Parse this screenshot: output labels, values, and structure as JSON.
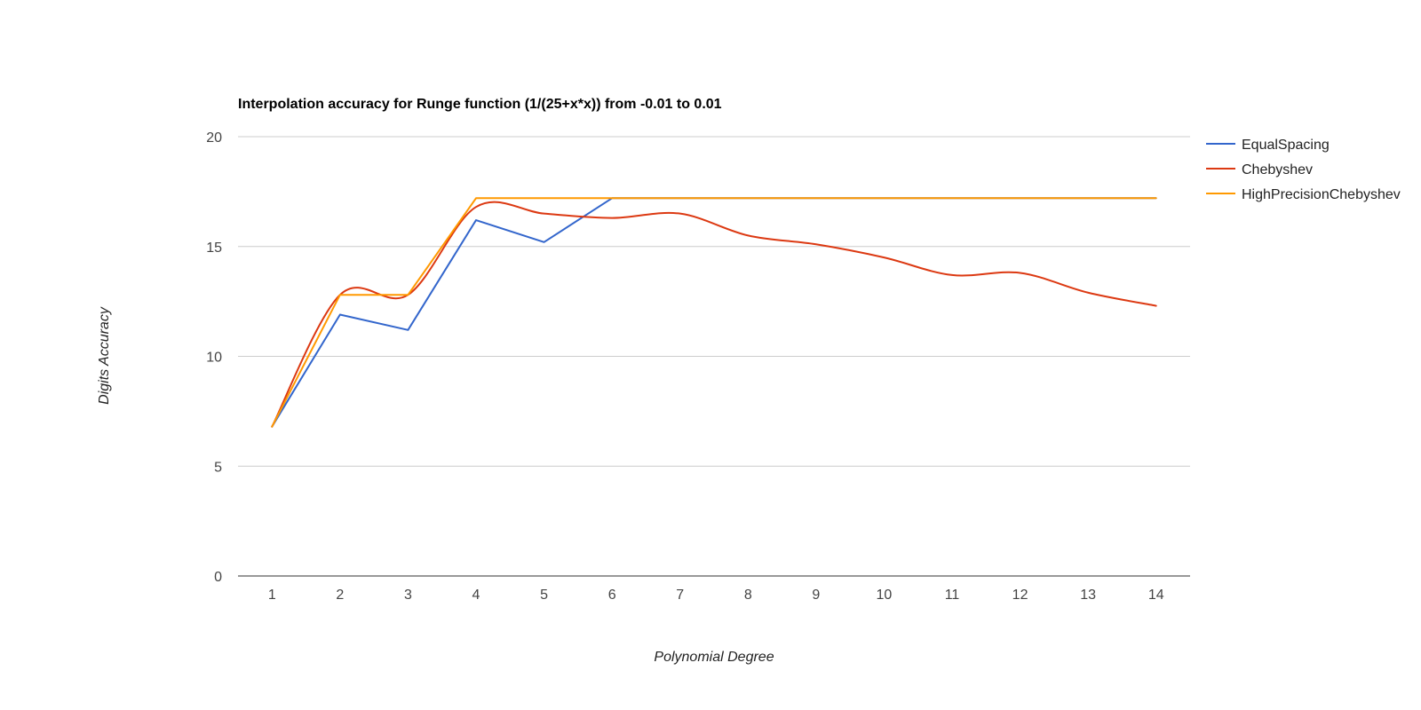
{
  "chart_data": {
    "type": "line",
    "title": "Interpolation accuracy for Runge function (1/(25+x*x)) from -0.01 to 0.01",
    "xlabel": "Polynomial Degree",
    "ylabel": "Digits Accuracy",
    "categories": [
      "1",
      "2",
      "3",
      "4",
      "5",
      "6",
      "7",
      "8",
      "9",
      "10",
      "11",
      "12",
      "13",
      "14"
    ],
    "ylim": [
      0,
      20
    ],
    "yticks": [
      0,
      5,
      10,
      15,
      20
    ],
    "grid": true,
    "legend_position": "right",
    "series": [
      {
        "name": "EqualSpacing",
        "color": "#3366cc",
        "smooth": false,
        "values": [
          6.8,
          11.9,
          11.2,
          16.2,
          15.2,
          17.2,
          17.2,
          17.2,
          17.2,
          17.2,
          17.2,
          17.2,
          17.2,
          17.2
        ]
      },
      {
        "name": "Chebyshev",
        "color": "#dc3912",
        "smooth": true,
        "values": [
          6.8,
          12.8,
          12.8,
          16.8,
          16.5,
          16.3,
          16.5,
          15.5,
          15.1,
          14.5,
          13.7,
          13.8,
          12.9,
          12.3
        ]
      },
      {
        "name": "HighPrecisionChebyshev",
        "color": "#ff9900",
        "smooth": false,
        "values": [
          6.8,
          12.8,
          12.8,
          17.2,
          17.2,
          17.2,
          17.2,
          17.2,
          17.2,
          17.2,
          17.2,
          17.2,
          17.2,
          17.2
        ]
      }
    ]
  }
}
